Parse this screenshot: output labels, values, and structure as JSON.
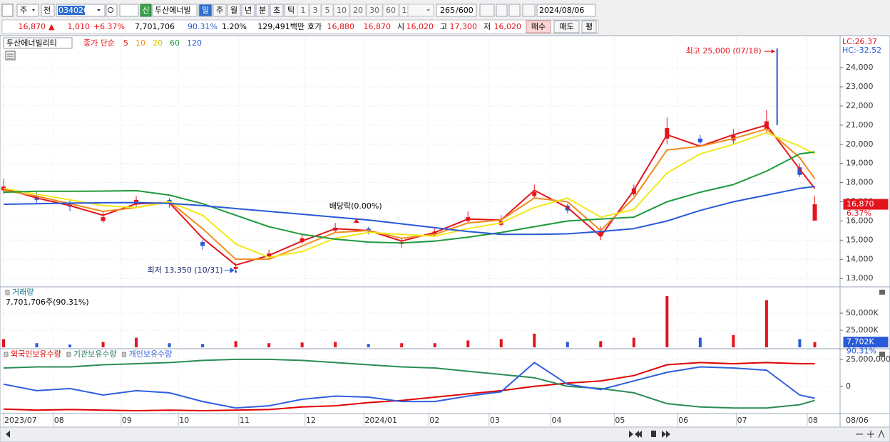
{
  "toolbar": {
    "market": "주",
    "prev": "전",
    "code": "034020",
    "credit": "신",
    "name": "두산에너빌",
    "periods": [
      "일",
      "주",
      "월",
      "년",
      "분",
      "초",
      "틱"
    ],
    "intervals": [
      "1",
      "3",
      "5",
      "10",
      "20",
      "30",
      "60",
      "120"
    ],
    "count": "265",
    "max": "/600",
    "date": "2024/08/06"
  },
  "quote_bar": {
    "price": "16,870",
    "arrow": "▲",
    "change": "1,010",
    "change_pct": "+6.37%",
    "volume": "7,701,706",
    "volume_ratio": "90.31%",
    "turnover": "1.20%",
    "amount": "129,491백만",
    "bid_label": "호가",
    "ask": "16,880",
    "bid": "16,870",
    "open_label": "시",
    "open": "16,020",
    "high_label": "고",
    "high": "17,300",
    "low_label": "저",
    "low": "16,020",
    "buy": "매수",
    "sell": "매도",
    "avg": "평"
  },
  "chart_data": [
    {
      "type": "candlestick",
      "title": "두산에너빌리티",
      "subtitle": "종가 단순",
      "lc_label": "LC:26.37",
      "hc_label": "HC:-32.52",
      "last_label": "16,870",
      "last_change_label": "6.37%",
      "color_up": "#e3141d",
      "color_down": "#2859d8",
      "grid": true,
      "x": [
        0,
        11,
        22,
        33,
        44,
        55,
        66,
        77,
        88,
        99,
        110,
        121,
        132,
        143,
        154,
        165,
        176,
        187,
        198,
        209,
        220,
        231,
        242,
        253,
        264,
        269
      ],
      "open": [
        17600,
        17300,
        16900,
        16000,
        16900,
        17100,
        14900,
        13500,
        14100,
        14900,
        15500,
        15600,
        14800,
        15300,
        16000,
        15800,
        17300,
        16800,
        15200,
        17400,
        20300,
        20300,
        20200,
        20800,
        18800,
        16020
      ],
      "high": [
        18200,
        17500,
        17100,
        16500,
        17300,
        17200,
        15000,
        13800,
        14500,
        15300,
        15900,
        15700,
        15100,
        15600,
        16500,
        16300,
        17900,
        16900,
        15700,
        17900,
        21400,
        20500,
        20800,
        21800,
        19000,
        17300
      ],
      "low": [
        17400,
        16900,
        16500,
        15900,
        16700,
        16700,
        14500,
        13350,
        14000,
        14800,
        15400,
        15300,
        14600,
        15200,
        15900,
        15700,
        17200,
        16400,
        15000,
        17300,
        20000,
        19900,
        20000,
        20600,
        18300,
        16020
      ],
      "close": [
        17800,
        17100,
        16750,
        16200,
        17100,
        16900,
        14700,
        13600,
        14300,
        15100,
        15650,
        15450,
        14900,
        15450,
        16200,
        16000,
        17500,
        16550,
        15450,
        17700,
        20850,
        20100,
        20470,
        21200,
        18400,
        16870
      ],
      "series": [
        {
          "name": "5",
          "color": "#e3141d",
          "values": [
            17700,
            17200,
            16800,
            16300,
            16900,
            16950,
            15100,
            13700,
            14200,
            14950,
            15600,
            15500,
            14950,
            15400,
            16100,
            16050,
            17600,
            16700,
            15200,
            17600,
            20500,
            19900,
            20500,
            21000,
            18700,
            17700
          ]
        },
        {
          "name": "10",
          "color": "#f08c1a",
          "values": [
            17600,
            17300,
            16900,
            16500,
            16700,
            17000,
            15600,
            14000,
            14000,
            14700,
            15400,
            15500,
            15100,
            15300,
            15900,
            16050,
            17200,
            17000,
            15500,
            17200,
            19700,
            19900,
            20300,
            20800,
            19300,
            18200
          ]
        },
        {
          "name": "20",
          "color": "#f2e81a",
          "values": [
            17700,
            17400,
            17100,
            16800,
            16700,
            17000,
            16300,
            14800,
            14100,
            14400,
            15100,
            15400,
            15300,
            15200,
            15600,
            15900,
            16700,
            17200,
            16200,
            16600,
            18500,
            19500,
            20000,
            20600,
            19900,
            19500
          ]
        },
        {
          "name": "60",
          "color": "#1f9a3c",
          "values": [
            17500,
            17550,
            17550,
            17560,
            17580,
            17350,
            16900,
            16300,
            15700,
            15300,
            15050,
            14900,
            14850,
            14950,
            15150,
            15400,
            15700,
            16000,
            16100,
            16200,
            17000,
            17500,
            17900,
            18600,
            19500,
            19600
          ]
        },
        {
          "name": "120",
          "color": "#2859d8",
          "values": [
            16870,
            16900,
            16930,
            16950,
            16960,
            16920,
            16800,
            16650,
            16500,
            16350,
            16200,
            16050,
            15850,
            15650,
            15450,
            15300,
            15300,
            15330,
            15450,
            15600,
            16000,
            16550,
            17000,
            17350,
            17700,
            17800
          ]
        }
      ],
      "annotations": [
        {
          "text": "최고 25,000 (07/18)",
          "x": 256.5,
          "y": 25000
        },
        {
          "text": "최저 13,350 (10/31)",
          "x": 77,
          "y": 13350
        },
        {
          "text": "배당락(0.00%)",
          "x": 117,
          "y": 15900
        }
      ],
      "xlim": [
        0,
        271
      ],
      "ylim": [
        12600,
        25600
      ],
      "yticks": [
        {
          "value": 13000,
          "label": "13,000"
        },
        {
          "value": 14000,
          "label": "14,000"
        },
        {
          "value": 15000,
          "label": "15,000"
        },
        {
          "value": 16000,
          "label": "16,000"
        },
        {
          "value": 17000,
          "label": "17,000"
        },
        {
          "value": 18000,
          "label": "18,000"
        },
        {
          "value": 19000,
          "label": "19,000"
        },
        {
          "value": 20000,
          "label": "20,000"
        },
        {
          "value": 21000,
          "label": "21,000"
        },
        {
          "value": 22000,
          "label": "22,000"
        },
        {
          "value": 23000,
          "label": "23,000"
        },
        {
          "value": 24000,
          "label": "24,000"
        }
      ]
    },
    {
      "type": "bar",
      "title": "거래량",
      "subtitle": "7,701,706주(90.31%)",
      "last_label": "7,702K",
      "ratio_label": "90.31%",
      "grid": true,
      "x": [
        0,
        11,
        22,
        33,
        44,
        55,
        66,
        77,
        88,
        99,
        110,
        121,
        132,
        143,
        154,
        165,
        176,
        187,
        198,
        209,
        220,
        231,
        242,
        253,
        264,
        269
      ],
      "values": [
        12000,
        6000,
        4000,
        8000,
        14000,
        6000,
        5000,
        9000,
        6000,
        7000,
        8000,
        5000,
        6000,
        6000,
        10000,
        12000,
        20000,
        8000,
        9000,
        14000,
        75000,
        14000,
        18000,
        69000,
        12000,
        7702
      ],
      "xlim": [
        0,
        271
      ],
      "ylim": [
        0,
        87500
      ],
      "yticks": [
        {
          "value": 25000,
          "label": "25,000K"
        },
        {
          "value": 50000,
          "label": "50,000K"
        }
      ]
    },
    {
      "type": "line",
      "grid": true,
      "x": [
        0,
        11,
        22,
        33,
        44,
        55,
        66,
        77,
        88,
        99,
        110,
        121,
        132,
        143,
        154,
        165,
        176,
        187,
        198,
        209,
        220,
        231,
        242,
        253,
        264,
        269
      ],
      "series": [
        {
          "name": "외국인보유수량",
          "color": "#e00000",
          "values": [
            -21000000,
            -22000000,
            -21500000,
            -22000000,
            -22500000,
            -22000000,
            -22500000,
            -22000000,
            -21500000,
            -19000000,
            -18000000,
            -15000000,
            -13000000,
            -10000000,
            -7000000,
            -4000000,
            0,
            3000000,
            5000000,
            10000000,
            20000000,
            22000000,
            21000000,
            22000000,
            21000000,
            21000000
          ]
        },
        {
          "name": "기관보유수량",
          "color": "#2a8c57",
          "values": [
            17000000,
            18000000,
            18000000,
            20000000,
            21000000,
            22000000,
            24000000,
            25000000,
            25000000,
            24000000,
            22000000,
            20000000,
            18000000,
            17000000,
            14000000,
            11000000,
            8000000,
            0,
            -2000000,
            -6000000,
            -16000000,
            -19000000,
            -20000000,
            -20000000,
            -17000000,
            -13000000
          ]
        },
        {
          "name": "개인보유수량",
          "color": "#2f5fe0",
          "values": [
            2000000,
            -4000000,
            -2000000,
            -8000000,
            -4000000,
            -6000000,
            -14000000,
            -20000000,
            -18000000,
            -12000000,
            -9000000,
            -10000000,
            -14000000,
            -14000000,
            -9000000,
            -5000000,
            22000000,
            2000000,
            -3000000,
            5000000,
            13000000,
            18000000,
            17000000,
            15000000,
            -8000000,
            -11000000
          ]
        }
      ],
      "xlim": [
        0,
        271
      ],
      "ylim": [
        -24500000,
        33500000
      ],
      "yticks": [
        {
          "value": 25000000,
          "label": "25,000,000"
        },
        0
      ],
      "xticks": [
        {
          "value": 0,
          "label": "2023/07"
        },
        {
          "value": 16.5,
          "label": "08"
        },
        {
          "value": 39,
          "label": "09"
        },
        {
          "value": 58,
          "label": "10"
        },
        {
          "value": 78,
          "label": "11"
        },
        {
          "value": 100,
          "label": "12"
        },
        {
          "value": 119.5,
          "label": "2024/01"
        },
        {
          "value": 141,
          "label": "02"
        },
        {
          "value": 161,
          "label": "03"
        },
        {
          "value": 181.5,
          "label": "04"
        },
        {
          "value": 202.5,
          "label": "05"
        },
        {
          "value": 223.5,
          "label": "06"
        },
        {
          "value": 243,
          "label": "07"
        },
        {
          "value": 266.5,
          "label": "08"
        }
      ],
      "current_date": "08/06"
    }
  ]
}
